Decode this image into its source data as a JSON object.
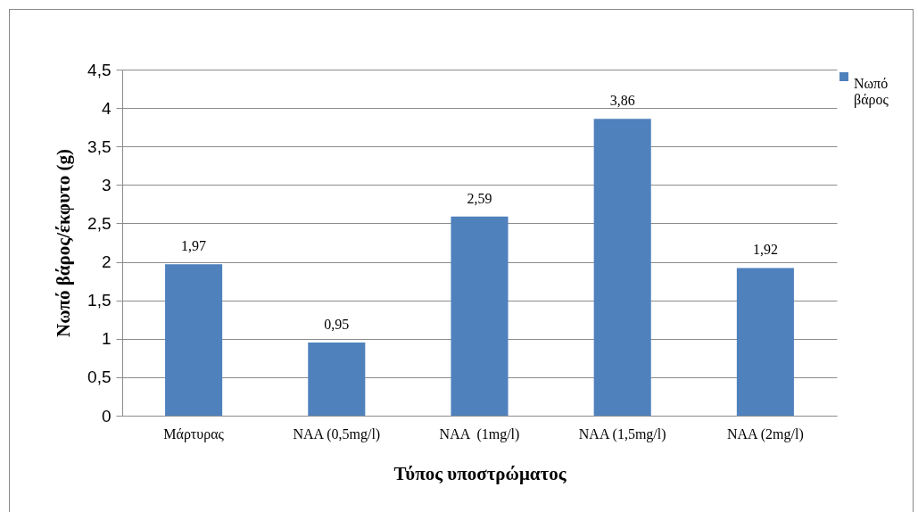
{
  "chart_data": {
    "type": "bar",
    "xlabel": "Τύπος υποστρώματος",
    "ylabel": "Νωπό βάρος/έκφυτο (g)",
    "categories": [
      "Μάρτυρας",
      "NAA (0,5mg/l)",
      "NAA  (1mg/l)",
      "NAA (1,5mg/l)",
      "NAA (2mg/l)"
    ],
    "series": [
      {
        "name": "Νωπό βάρος",
        "color": "#4f81bd",
        "values": [
          1.97,
          0.95,
          2.59,
          3.86,
          1.92
        ],
        "value_labels": [
          "1,97",
          "0,95",
          "2,59",
          "3,86",
          "1,92"
        ]
      }
    ],
    "ylim": [
      0,
      4.5
    ],
    "yticks": [
      0,
      {
        "value": 0.5,
        "label": "0,5"
      },
      1,
      {
        "value": 1.5,
        "label": "1,5"
      },
      2,
      {
        "value": 2.5,
        "label": "2,5"
      },
      3,
      {
        "value": 3.5,
        "label": "3,5"
      },
      4,
      {
        "value": 4.5,
        "label": "4,5"
      }
    ],
    "grid": "y",
    "legend": "right"
  }
}
